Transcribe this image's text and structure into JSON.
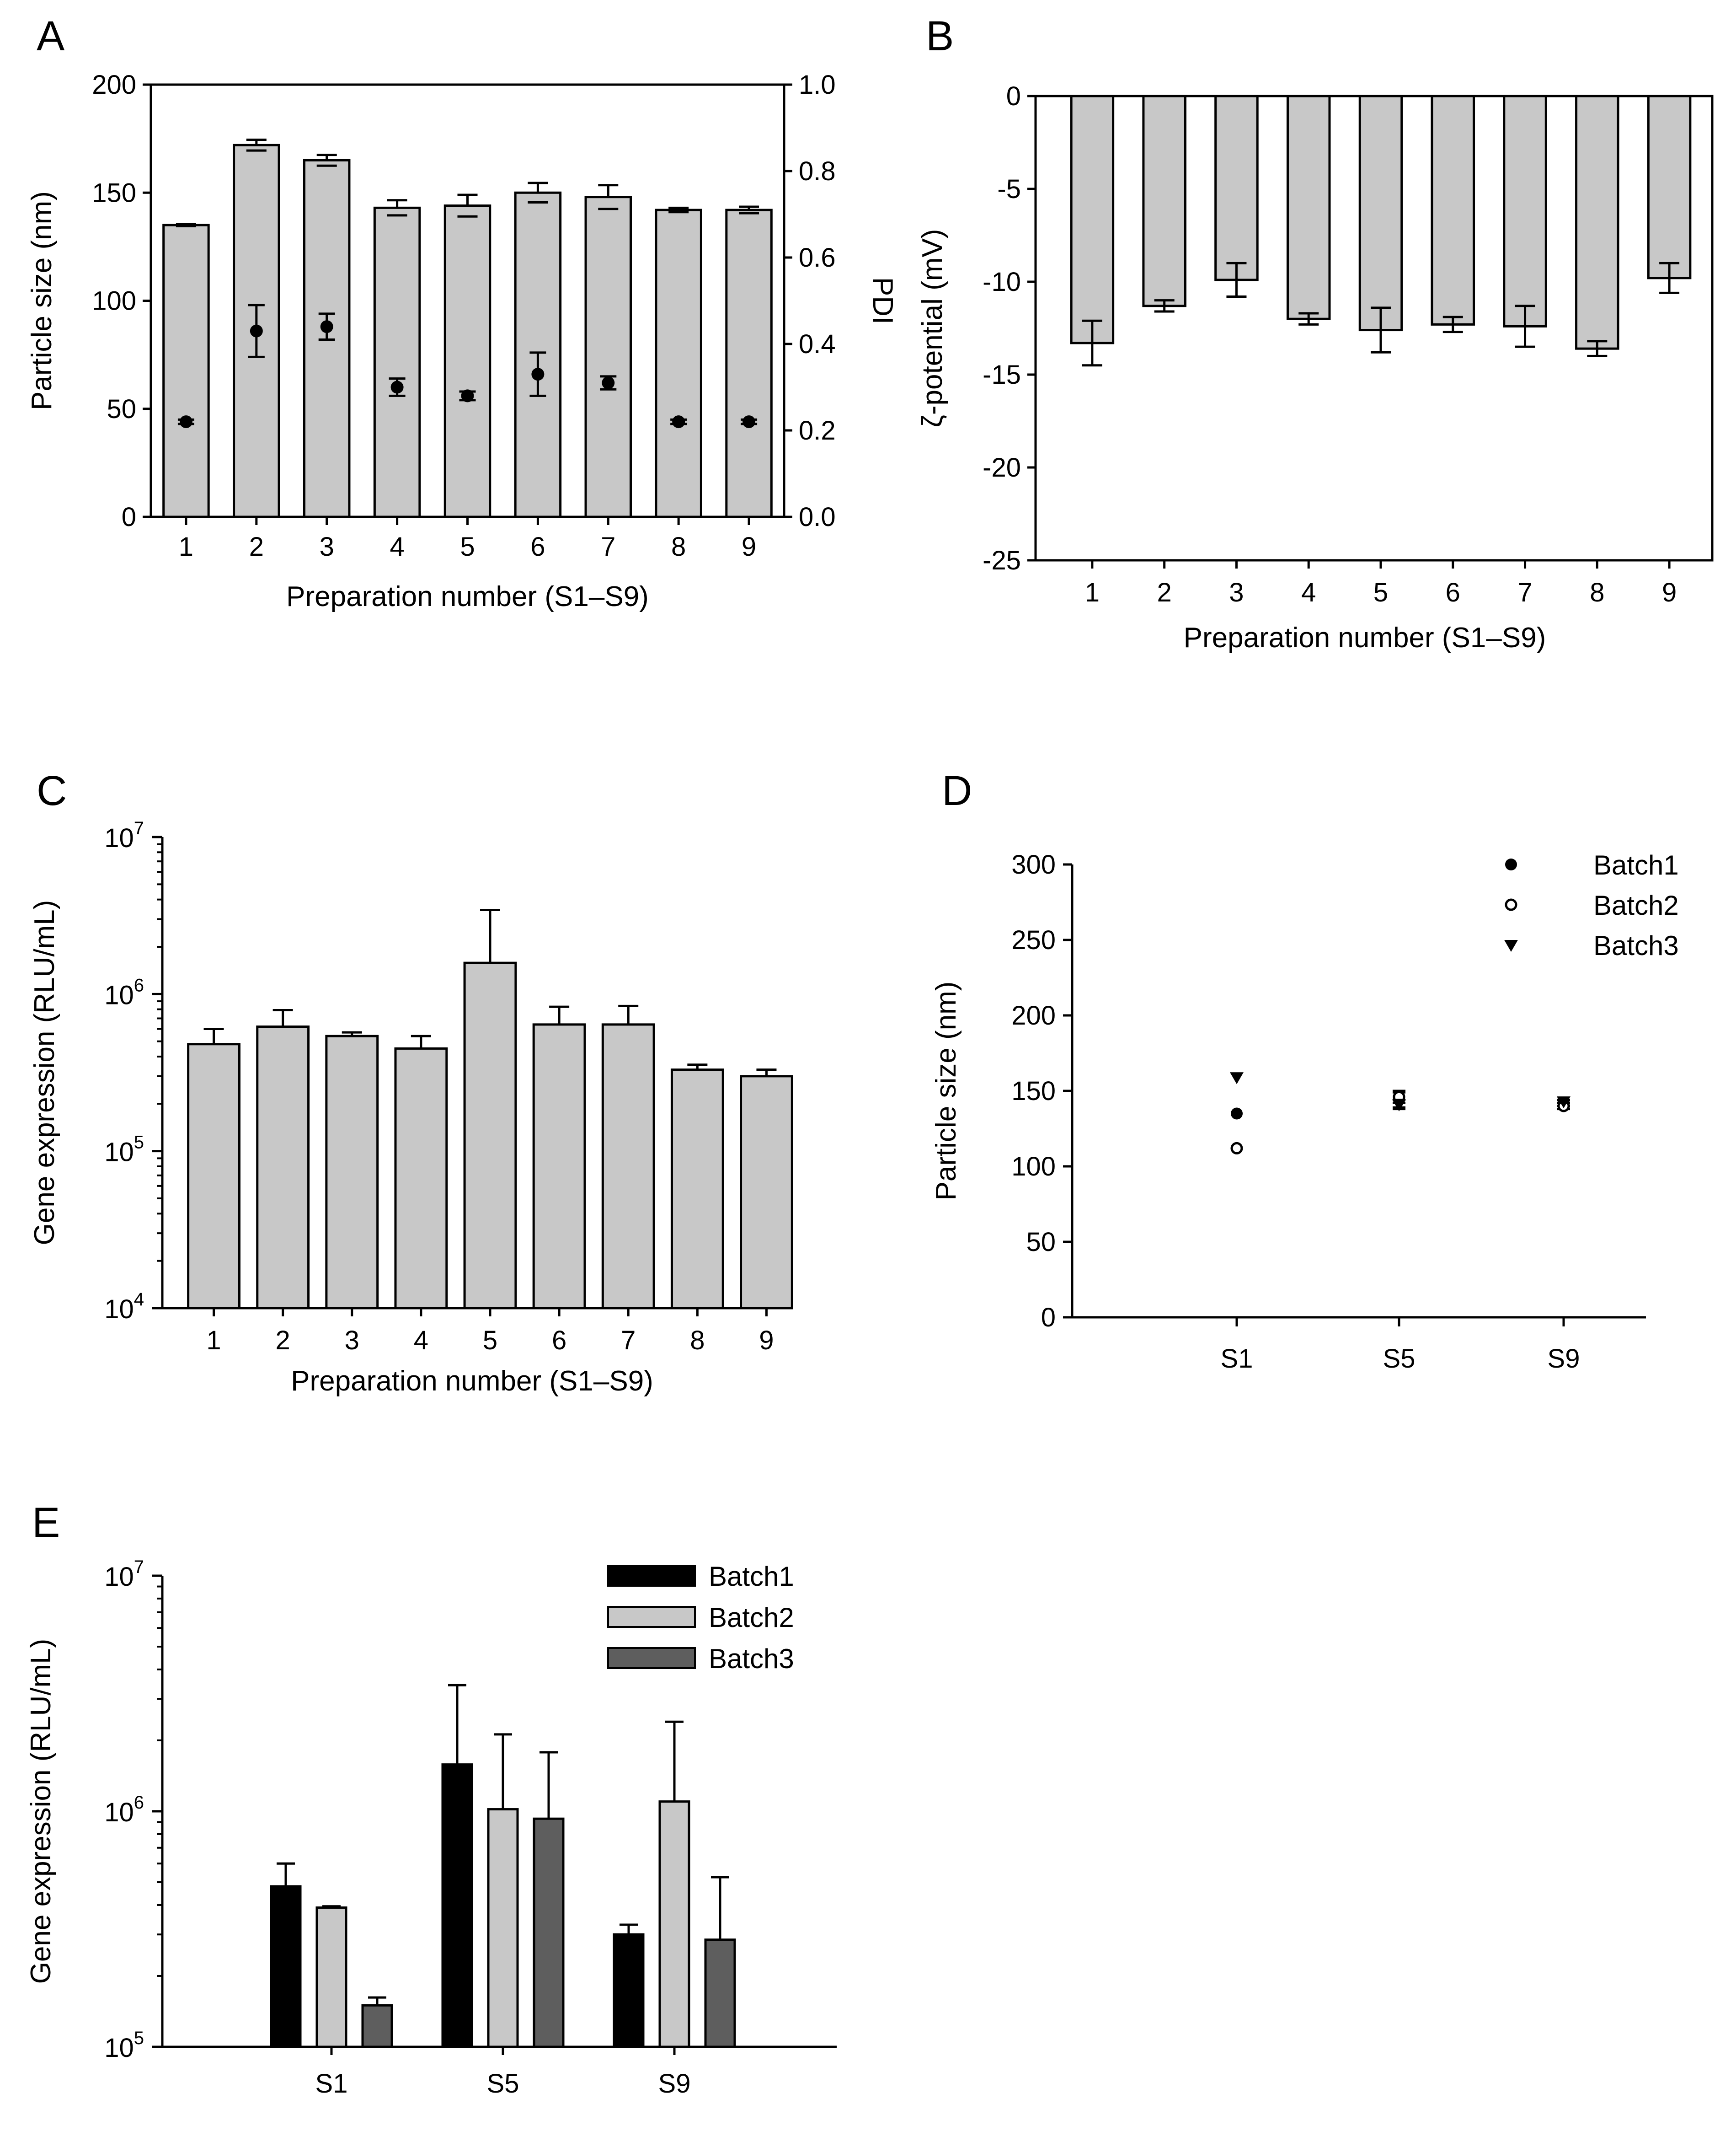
{
  "chart_data": [
    {
      "panel": "A",
      "type": "bar",
      "categories": [
        "1",
        "2",
        "3",
        "4",
        "5",
        "6",
        "7",
        "8",
        "9"
      ],
      "xlabel": "Preparation number (S1–S9)",
      "ylabel": "Particle size (nm)",
      "ylim": [
        0,
        200
      ],
      "yticks": [
        "0",
        "50",
        "100",
        "150",
        "200"
      ],
      "values": [
        135,
        172,
        165,
        143,
        144,
        150,
        148,
        142,
        142
      ],
      "errors": [
        0.5,
        2.5,
        2.5,
        3.5,
        5,
        4.5,
        5.5,
        1,
        1.5
      ],
      "y2label": "PDI",
      "y2lim": [
        0,
        1.0
      ],
      "y2ticks": [
        "0.0",
        "0.2",
        "0.4",
        "0.6",
        "0.8",
        "1.0"
      ],
      "pdi_values": [
        0.22,
        0.43,
        0.44,
        0.3,
        0.28,
        0.33,
        0.31,
        0.22,
        0.22
      ],
      "pdi_errors": [
        0.005,
        0.06,
        0.03,
        0.02,
        0.01,
        0.05,
        0.015,
        0.005,
        0.005
      ],
      "bar_color": "#c8c8c8"
    },
    {
      "panel": "B",
      "type": "bar",
      "categories": [
        "1",
        "2",
        "3",
        "4",
        "5",
        "6",
        "7",
        "8",
        "9"
      ],
      "xlabel": "Preparation number (S1–S9)",
      "ylabel": "ζ-potential (mV)",
      "ylim": [
        -25,
        0
      ],
      "yticks": [
        "0",
        "-5",
        "-10",
        "-15",
        "-20",
        "-25"
      ],
      "values": [
        -13.3,
        -11.3,
        -9.9,
        -12.0,
        -12.6,
        -12.3,
        -12.4,
        -13.6,
        -9.8
      ],
      "errors": [
        1.2,
        0.3,
        0.9,
        0.3,
        1.2,
        0.4,
        1.1,
        0.4,
        0.8
      ],
      "bar_color": "#c8c8c8"
    },
    {
      "panel": "C",
      "type": "bar",
      "yscale": "log",
      "categories": [
        "1",
        "2",
        "3",
        "4",
        "5",
        "6",
        "7",
        "8",
        "9"
      ],
      "xlabel": "Preparation number (S1–S9)",
      "ylabel": "Gene expression (RLU/mL)",
      "ylim": [
        10000,
        10000000
      ],
      "yticks": [
        {
          "base": "10",
          "exp": "4"
        },
        {
          "base": "10",
          "exp": "5"
        },
        {
          "base": "10",
          "exp": "6"
        },
        {
          "base": "10",
          "exp": "7"
        }
      ],
      "values": [
        480000,
        620000,
        540000,
        450000,
        1580000,
        640000,
        640000,
        330000,
        300000
      ],
      "errors": [
        120000,
        170000,
        30000,
        90000,
        1850000,
        190000,
        200000,
        25000,
        30000
      ],
      "bar_color": "#c8c8c8"
    },
    {
      "panel": "D",
      "type": "scatter",
      "categories": [
        "S1",
        "S5",
        "S9"
      ],
      "ylabel": "Particle size (nm)",
      "ylim": [
        0,
        300
      ],
      "yticks": [
        "0",
        "50",
        "100",
        "150",
        "200",
        "250",
        "300"
      ],
      "legend": "top-right",
      "series": [
        {
          "name": "Batch1",
          "marker": "filled-circle",
          "values": [
            135,
            144,
            142
          ],
          "errors": [
            0,
            5,
            2
          ]
        },
        {
          "name": "Batch2",
          "marker": "open-circle",
          "values": [
            112,
            146,
            140
          ],
          "errors": [
            0,
            4,
            2
          ]
        },
        {
          "name": "Batch3",
          "marker": "filled-triangle-down",
          "values": [
            159,
            141,
            143
          ],
          "errors": [
            0,
            3,
            1
          ]
        }
      ]
    },
    {
      "panel": "E",
      "type": "bar",
      "yscale": "log",
      "categories": [
        "S1",
        "S5",
        "S9"
      ],
      "ylabel": "Gene expression (RLU/mL)",
      "ylim": [
        100000,
        10000000
      ],
      "yticks": [
        {
          "base": "10",
          "exp": "5"
        },
        {
          "base": "10",
          "exp": "6"
        },
        {
          "base": "10",
          "exp": "7"
        }
      ],
      "legend": "top-right",
      "series": [
        {
          "name": "Batch1",
          "color": "#000000",
          "values": [
            480000,
            1580000,
            300000
          ],
          "errors": [
            120000,
            1850000,
            30000
          ]
        },
        {
          "name": "Batch2",
          "color": "#c8c8c8",
          "values": [
            390000,
            1020000,
            1100000
          ],
          "errors": [
            5000,
            1100000,
            1300000
          ]
        },
        {
          "name": "Batch3",
          "color": "#5e5e5e",
          "values": [
            150000,
            930000,
            285000
          ],
          "errors": [
            12000,
            850000,
            240000
          ]
        }
      ]
    }
  ]
}
